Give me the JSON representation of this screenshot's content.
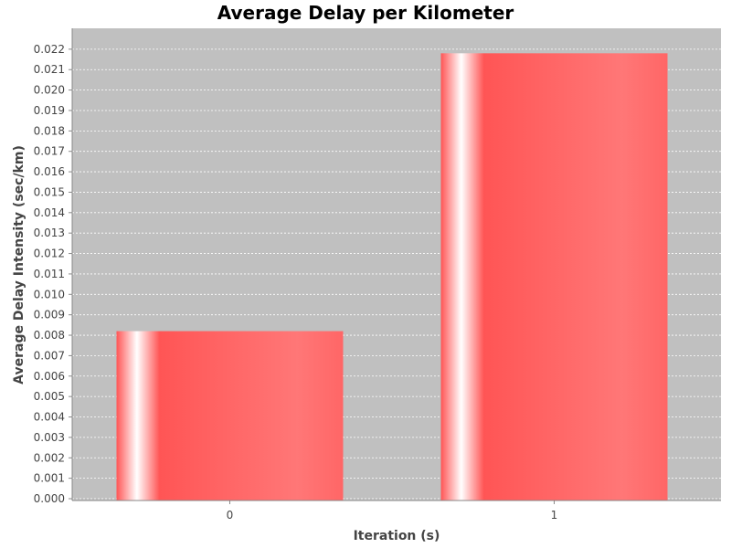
{
  "colors": {
    "plot_background": "#c0c0c0",
    "bar_base": "#ff5555",
    "bar_highlight": "#ffffff",
    "grid": "#ffffff"
  },
  "chart_data": {
    "type": "bar",
    "title": "Average Delay per Kilometer",
    "xlabel": "Iteration (s)",
    "ylabel": "Average Delay Intensity (sec/km)",
    "categories": [
      "0",
      "1"
    ],
    "values": [
      0.0082,
      0.0218
    ],
    "ylim": [
      0,
      0.0225
    ],
    "yticks": [
      "0.000",
      "0.001",
      "0.002",
      "0.003",
      "0.004",
      "0.005",
      "0.006",
      "0.007",
      "0.008",
      "0.009",
      "0.010",
      "0.011",
      "0.012",
      "0.013",
      "0.014",
      "0.015",
      "0.016",
      "0.017",
      "0.018",
      "0.019",
      "0.020",
      "0.021",
      "0.022"
    ],
    "grid": true,
    "legend": "none"
  }
}
